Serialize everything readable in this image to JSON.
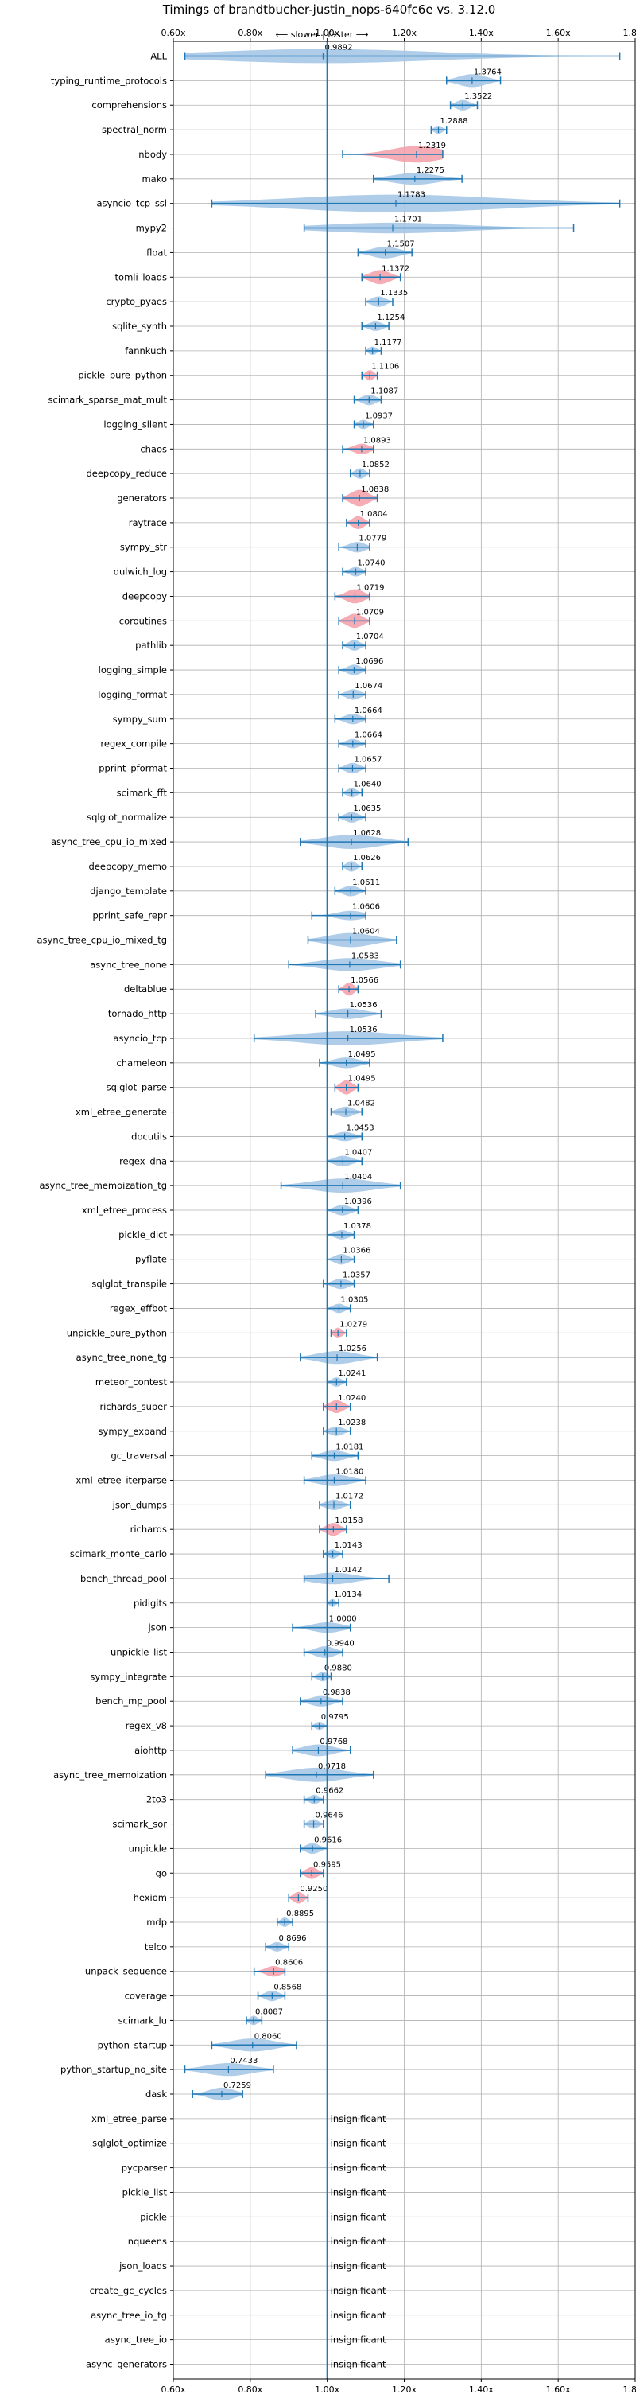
{
  "chart_data": {
    "type": "violin",
    "title": "Timings of brandtbucher-justin_nops-640fc6e vs. 3.12.0",
    "direction_label": "⟵ slower | faster ⟶",
    "xlim": [
      0.6,
      1.8
    ],
    "x_ticks": [
      0.6,
      0.8,
      1.0,
      1.2,
      1.4,
      1.6,
      1.8
    ],
    "x_tick_labels": [
      "0.60x",
      "0.80x",
      "1.00x",
      "1.20x",
      "1.40x",
      "1.60x",
      "1.80x"
    ],
    "reference_x": 1.0,
    "grid": true,
    "colors": {
      "violin": "#a6c8e5",
      "highlight": "#f4a3ad",
      "line": "#1f77b4",
      "ref": "#1f77b4"
    },
    "insignificant_label": "insignificant",
    "benchmarks": [
      {
        "name": "ALL",
        "value": 0.9892,
        "min": 0.63,
        "max": 1.76,
        "width": 0.6,
        "highlight": false
      },
      {
        "name": "typing_runtime_protocols",
        "value": 1.3764,
        "min": 1.31,
        "max": 1.45,
        "width": 0.55,
        "highlight": false
      },
      {
        "name": "comprehensions",
        "value": 1.3522,
        "min": 1.32,
        "max": 1.39,
        "width": 0.45,
        "highlight": false
      },
      {
        "name": "spectral_norm",
        "value": 1.2888,
        "min": 1.27,
        "max": 1.31,
        "width": 0.35,
        "highlight": false
      },
      {
        "name": "nbody",
        "value": 1.2319,
        "min": 1.04,
        "max": 1.3,
        "width": 0.7,
        "highlight": true
      },
      {
        "name": "mako",
        "value": 1.2275,
        "min": 1.12,
        "max": 1.35,
        "width": 0.5,
        "highlight": false
      },
      {
        "name": "asyncio_tcp_ssl",
        "value": 1.1783,
        "min": 0.7,
        "max": 1.76,
        "width": 0.75,
        "highlight": false
      },
      {
        "name": "mypy2",
        "value": 1.1701,
        "min": 0.94,
        "max": 1.64,
        "width": 0.45,
        "highlight": false
      },
      {
        "name": "float",
        "value": 1.1507,
        "min": 1.08,
        "max": 1.22,
        "width": 0.5,
        "highlight": false
      },
      {
        "name": "tomli_loads",
        "value": 1.1372,
        "min": 1.09,
        "max": 1.19,
        "width": 0.6,
        "highlight": true
      },
      {
        "name": "crypto_pyaes",
        "value": 1.1335,
        "min": 1.1,
        "max": 1.17,
        "width": 0.45,
        "highlight": false
      },
      {
        "name": "sqlite_synth",
        "value": 1.1254,
        "min": 1.09,
        "max": 1.16,
        "width": 0.4,
        "highlight": false
      },
      {
        "name": "fannkuch",
        "value": 1.1177,
        "min": 1.1,
        "max": 1.14,
        "width": 0.35,
        "highlight": false
      },
      {
        "name": "pickle_pure_python",
        "value": 1.1106,
        "min": 1.09,
        "max": 1.13,
        "width": 0.45,
        "highlight": true
      },
      {
        "name": "scimark_sparse_mat_mult",
        "value": 1.1087,
        "min": 1.07,
        "max": 1.14,
        "width": 0.45,
        "highlight": false
      },
      {
        "name": "logging_silent",
        "value": 1.0937,
        "min": 1.07,
        "max": 1.12,
        "width": 0.4,
        "highlight": false
      },
      {
        "name": "chaos",
        "value": 1.0893,
        "min": 1.04,
        "max": 1.12,
        "width": 0.45,
        "highlight": true
      },
      {
        "name": "deepcopy_reduce",
        "value": 1.0852,
        "min": 1.06,
        "max": 1.11,
        "width": 0.45,
        "highlight": false
      },
      {
        "name": "generators",
        "value": 1.0838,
        "min": 1.04,
        "max": 1.13,
        "width": 0.7,
        "highlight": true
      },
      {
        "name": "raytrace",
        "value": 1.0804,
        "min": 1.05,
        "max": 1.11,
        "width": 0.55,
        "highlight": true
      },
      {
        "name": "sympy_str",
        "value": 1.0779,
        "min": 1.03,
        "max": 1.11,
        "width": 0.45,
        "highlight": false
      },
      {
        "name": "dulwich_log",
        "value": 1.074,
        "min": 1.04,
        "max": 1.1,
        "width": 0.4,
        "highlight": false
      },
      {
        "name": "deepcopy",
        "value": 1.0719,
        "min": 1.02,
        "max": 1.11,
        "width": 0.6,
        "highlight": true
      },
      {
        "name": "coroutines",
        "value": 1.0709,
        "min": 1.03,
        "max": 1.11,
        "width": 0.6,
        "highlight": true
      },
      {
        "name": "pathlib",
        "value": 1.0704,
        "min": 1.04,
        "max": 1.1,
        "width": 0.45,
        "highlight": false
      },
      {
        "name": "logging_simple",
        "value": 1.0696,
        "min": 1.03,
        "max": 1.1,
        "width": 0.45,
        "highlight": false
      },
      {
        "name": "logging_format",
        "value": 1.0674,
        "min": 1.03,
        "max": 1.1,
        "width": 0.45,
        "highlight": false
      },
      {
        "name": "sympy_sum",
        "value": 1.0664,
        "min": 1.02,
        "max": 1.1,
        "width": 0.45,
        "highlight": false
      },
      {
        "name": "regex_compile",
        "value": 1.0664,
        "min": 1.03,
        "max": 1.1,
        "width": 0.4,
        "highlight": false
      },
      {
        "name": "pprint_pformat",
        "value": 1.0657,
        "min": 1.03,
        "max": 1.1,
        "width": 0.45,
        "highlight": false
      },
      {
        "name": "scimark_fft",
        "value": 1.064,
        "min": 1.04,
        "max": 1.09,
        "width": 0.4,
        "highlight": false
      },
      {
        "name": "sqlglot_normalize",
        "value": 1.0635,
        "min": 1.03,
        "max": 1.1,
        "width": 0.45,
        "highlight": false
      },
      {
        "name": "async_tree_cpu_io_mixed",
        "value": 1.0628,
        "min": 0.93,
        "max": 1.21,
        "width": 0.6,
        "highlight": false
      },
      {
        "name": "deepcopy_memo",
        "value": 1.0626,
        "min": 1.04,
        "max": 1.09,
        "width": 0.45,
        "highlight": false
      },
      {
        "name": "django_template",
        "value": 1.0611,
        "min": 1.02,
        "max": 1.1,
        "width": 0.45,
        "highlight": false
      },
      {
        "name": "pprint_safe_repr",
        "value": 1.0606,
        "min": 0.96,
        "max": 1.1,
        "width": 0.4,
        "highlight": false
      },
      {
        "name": "async_tree_cpu_io_mixed_tg",
        "value": 1.0604,
        "min": 0.95,
        "max": 1.18,
        "width": 0.6,
        "highlight": false
      },
      {
        "name": "async_tree_none",
        "value": 1.0583,
        "min": 0.9,
        "max": 1.19,
        "width": 0.55,
        "highlight": false
      },
      {
        "name": "deltablue",
        "value": 1.0566,
        "min": 1.03,
        "max": 1.08,
        "width": 0.55,
        "highlight": true
      },
      {
        "name": "tornado_http",
        "value": 1.0536,
        "min": 0.97,
        "max": 1.14,
        "width": 0.45,
        "highlight": false
      },
      {
        "name": "asyncio_tcp",
        "value": 1.0536,
        "min": 0.81,
        "max": 1.3,
        "width": 0.6,
        "highlight": false
      },
      {
        "name": "chameleon",
        "value": 1.0495,
        "min": 0.98,
        "max": 1.11,
        "width": 0.45,
        "highlight": false
      },
      {
        "name": "sqlglot_parse",
        "value": 1.0495,
        "min": 1.02,
        "max": 1.08,
        "width": 0.6,
        "highlight": true
      },
      {
        "name": "xml_etree_generate",
        "value": 1.0482,
        "min": 1.01,
        "max": 1.09,
        "width": 0.45,
        "highlight": false
      },
      {
        "name": "docutils",
        "value": 1.0453,
        "min": 1.0,
        "max": 1.09,
        "width": 0.4,
        "highlight": false
      },
      {
        "name": "regex_dna",
        "value": 1.0407,
        "min": 1.0,
        "max": 1.09,
        "width": 0.45,
        "highlight": false
      },
      {
        "name": "async_tree_memoization_tg",
        "value": 1.0404,
        "min": 0.88,
        "max": 1.19,
        "width": 0.6,
        "highlight": false
      },
      {
        "name": "xml_etree_process",
        "value": 1.0396,
        "min": 1.0,
        "max": 1.08,
        "width": 0.45,
        "highlight": false
      },
      {
        "name": "pickle_dict",
        "value": 1.0378,
        "min": 1.0,
        "max": 1.07,
        "width": 0.4,
        "highlight": false
      },
      {
        "name": "pyflate",
        "value": 1.0366,
        "min": 1.0,
        "max": 1.07,
        "width": 0.45,
        "highlight": false
      },
      {
        "name": "sqlglot_transpile",
        "value": 1.0357,
        "min": 0.99,
        "max": 1.07,
        "width": 0.45,
        "highlight": false
      },
      {
        "name": "regex_effbot",
        "value": 1.0305,
        "min": 1.0,
        "max": 1.06,
        "width": 0.4,
        "highlight": false
      },
      {
        "name": "unpickle_pure_python",
        "value": 1.0279,
        "min": 1.01,
        "max": 1.05,
        "width": 0.45,
        "highlight": true
      },
      {
        "name": "async_tree_none_tg",
        "value": 1.0256,
        "min": 0.93,
        "max": 1.13,
        "width": 0.55,
        "highlight": false
      },
      {
        "name": "meteor_contest",
        "value": 1.0241,
        "min": 1.0,
        "max": 1.05,
        "width": 0.4,
        "highlight": false
      },
      {
        "name": "richards_super",
        "value": 1.024,
        "min": 0.99,
        "max": 1.06,
        "width": 0.55,
        "highlight": true
      },
      {
        "name": "sympy_expand",
        "value": 1.0238,
        "min": 0.99,
        "max": 1.06,
        "width": 0.4,
        "highlight": false
      },
      {
        "name": "gc_traversal",
        "value": 1.0181,
        "min": 0.96,
        "max": 1.08,
        "width": 0.45,
        "highlight": false
      },
      {
        "name": "xml_etree_iterparse",
        "value": 1.018,
        "min": 0.94,
        "max": 1.1,
        "width": 0.5,
        "highlight": false
      },
      {
        "name": "json_dumps",
        "value": 1.0172,
        "min": 0.98,
        "max": 1.06,
        "width": 0.45,
        "highlight": false
      },
      {
        "name": "richards",
        "value": 1.0158,
        "min": 0.98,
        "max": 1.05,
        "width": 0.55,
        "highlight": true
      },
      {
        "name": "scimark_monte_carlo",
        "value": 1.0143,
        "min": 0.99,
        "max": 1.04,
        "width": 0.4,
        "highlight": false
      },
      {
        "name": "bench_thread_pool",
        "value": 1.0142,
        "min": 0.94,
        "max": 1.16,
        "width": 0.5,
        "highlight": false
      },
      {
        "name": "pidigits",
        "value": 1.0134,
        "min": 1.0,
        "max": 1.03,
        "width": 0.35,
        "highlight": false
      },
      {
        "name": "json",
        "value": 1.0,
        "min": 0.91,
        "max": 1.06,
        "width": 0.45,
        "highlight": false
      },
      {
        "name": "unpickle_list",
        "value": 0.994,
        "min": 0.94,
        "max": 1.04,
        "width": 0.5,
        "highlight": false
      },
      {
        "name": "sympy_integrate",
        "value": 0.988,
        "min": 0.96,
        "max": 1.01,
        "width": 0.4,
        "highlight": false
      },
      {
        "name": "bench_mp_pool",
        "value": 0.9838,
        "min": 0.93,
        "max": 1.04,
        "width": 0.45,
        "highlight": false
      },
      {
        "name": "regex_v8",
        "value": 0.9795,
        "min": 0.96,
        "max": 1.0,
        "width": 0.35,
        "highlight": false
      },
      {
        "name": "aiohttp",
        "value": 0.9768,
        "min": 0.91,
        "max": 1.06,
        "width": 0.5,
        "highlight": false
      },
      {
        "name": "async_tree_memoization",
        "value": 0.9718,
        "min": 0.84,
        "max": 1.12,
        "width": 0.6,
        "highlight": false
      },
      {
        "name": "2to3",
        "value": 0.9662,
        "min": 0.94,
        "max": 0.99,
        "width": 0.4,
        "highlight": false
      },
      {
        "name": "scimark_sor",
        "value": 0.9646,
        "min": 0.94,
        "max": 0.99,
        "width": 0.4,
        "highlight": false
      },
      {
        "name": "unpickle",
        "value": 0.9616,
        "min": 0.93,
        "max": 1.0,
        "width": 0.45,
        "highlight": false
      },
      {
        "name": "go",
        "value": 0.9595,
        "min": 0.93,
        "max": 0.99,
        "width": 0.5,
        "highlight": true
      },
      {
        "name": "hexiom",
        "value": 0.925,
        "min": 0.9,
        "max": 0.95,
        "width": 0.5,
        "highlight": true
      },
      {
        "name": "mdp",
        "value": 0.8895,
        "min": 0.87,
        "max": 0.91,
        "width": 0.4,
        "highlight": false
      },
      {
        "name": "telco",
        "value": 0.8696,
        "min": 0.84,
        "max": 0.9,
        "width": 0.4,
        "highlight": false
      },
      {
        "name": "unpack_sequence",
        "value": 0.8606,
        "min": 0.81,
        "max": 0.89,
        "width": 0.45,
        "highlight": true
      },
      {
        "name": "coverage",
        "value": 0.8568,
        "min": 0.82,
        "max": 0.89,
        "width": 0.45,
        "highlight": false
      },
      {
        "name": "scimark_lu",
        "value": 0.8087,
        "min": 0.79,
        "max": 0.83,
        "width": 0.4,
        "highlight": false
      },
      {
        "name": "python_startup",
        "value": 0.806,
        "min": 0.7,
        "max": 0.92,
        "width": 0.55,
        "highlight": false
      },
      {
        "name": "python_startup_no_site",
        "value": 0.7433,
        "min": 0.63,
        "max": 0.86,
        "width": 0.55,
        "highlight": false
      },
      {
        "name": "dask",
        "value": 0.7259,
        "min": 0.65,
        "max": 0.78,
        "width": 0.55,
        "highlight": false
      },
      {
        "name": "xml_etree_parse",
        "value": null
      },
      {
        "name": "sqlglot_optimize",
        "value": null
      },
      {
        "name": "pycparser",
        "value": null
      },
      {
        "name": "pickle_list",
        "value": null
      },
      {
        "name": "pickle",
        "value": null
      },
      {
        "name": "nqueens",
        "value": null
      },
      {
        "name": "json_loads",
        "value": null
      },
      {
        "name": "create_gc_cycles",
        "value": null
      },
      {
        "name": "async_tree_io_tg",
        "value": null
      },
      {
        "name": "async_tree_io",
        "value": null
      },
      {
        "name": "async_generators",
        "value": null
      }
    ]
  }
}
